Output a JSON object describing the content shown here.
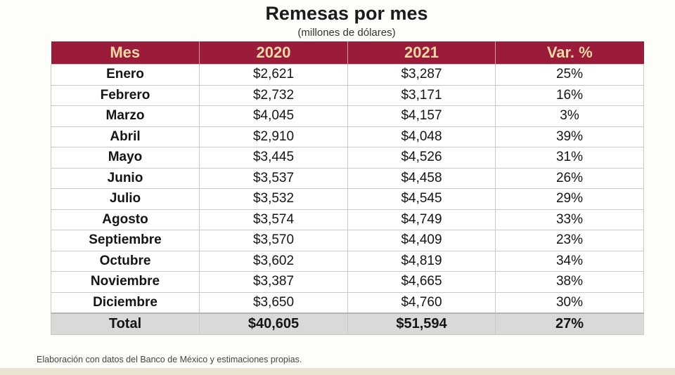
{
  "chart_data": {
    "type": "table",
    "title": "Remesas por mes",
    "subtitle": "(millones de dólares)",
    "columns": [
      "Mes",
      "2020",
      "2021",
      "Var. %"
    ],
    "rows": [
      [
        "Enero",
        "$2,621",
        "$3,287",
        "25%"
      ],
      [
        "Febrero",
        "$2,732",
        "$3,171",
        "16%"
      ],
      [
        "Marzo",
        "$4,045",
        "$4,157",
        "3%"
      ],
      [
        "Abril",
        "$2,910",
        "$4,048",
        "39%"
      ],
      [
        "Mayo",
        "$3,445",
        "$4,526",
        "31%"
      ],
      [
        "Junio",
        "$3,537",
        "$4,458",
        "26%"
      ],
      [
        "Julio",
        "$3,532",
        "$4,545",
        "29%"
      ],
      [
        "Agosto",
        "$3,574",
        "$4,749",
        "33%"
      ],
      [
        "Septiembre",
        "$3,570",
        "$4,409",
        "23%"
      ],
      [
        "Octubre",
        "$3,602",
        "$4,819",
        "34%"
      ],
      [
        "Noviembre",
        "$3,387",
        "$4,665",
        "38%"
      ],
      [
        "Diciembre",
        "$3,650",
        "$4,760",
        "30%"
      ]
    ],
    "total": [
      "Total",
      "$40,605",
      "$51,594",
      "27%"
    ],
    "header_color": "#9b1b3a",
    "header_text_color": "#f3d9a6",
    "total_row_color": "#d9d9d9"
  },
  "footnote": "Elaboración con datos del Banco de México y estimaciones propias."
}
